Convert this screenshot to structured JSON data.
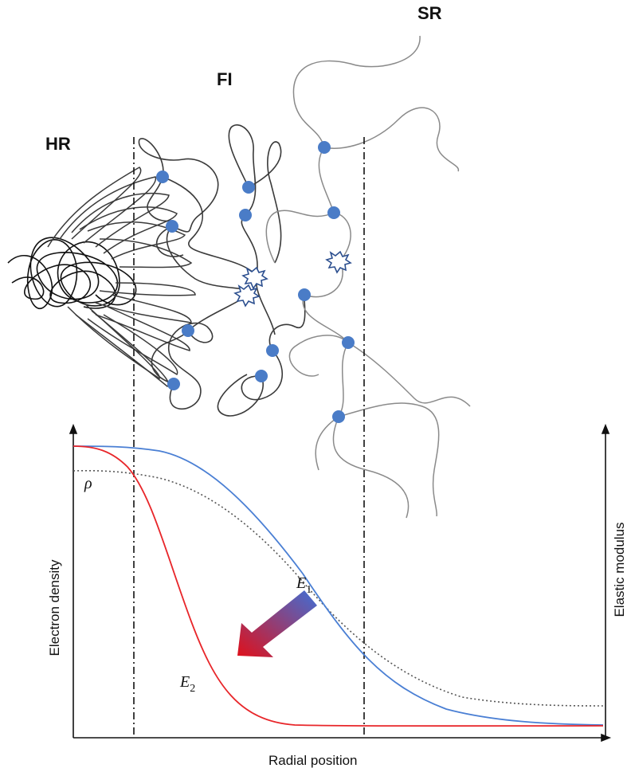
{
  "regions": {
    "hr": "HR",
    "fi": "FI",
    "sr": "SR"
  },
  "axes": {
    "x_label": "Radial position",
    "y_left_label": "Electron density",
    "y_right_label": "Elastic modulus"
  },
  "curves": {
    "rho": {
      "symbol": "ρ",
      "color": "#555555",
      "style": "dotted"
    },
    "e1": {
      "symbol": "E",
      "subscript": "1",
      "color": "#4a7fd4"
    },
    "e2": {
      "symbol": "E",
      "subscript": "2",
      "color": "#e8262a"
    }
  },
  "colors": {
    "crosslink": "#4a7cc7",
    "hard_chain": "#111111",
    "interface_chain": "#3a3a3a",
    "soft_chain": "#8a8a8a",
    "arrow_start": "#3f6fd6",
    "arrow_end": "#e0101a"
  },
  "markers": {
    "crosslink_symbol": "circle",
    "entanglement_symbol": "starburst"
  }
}
